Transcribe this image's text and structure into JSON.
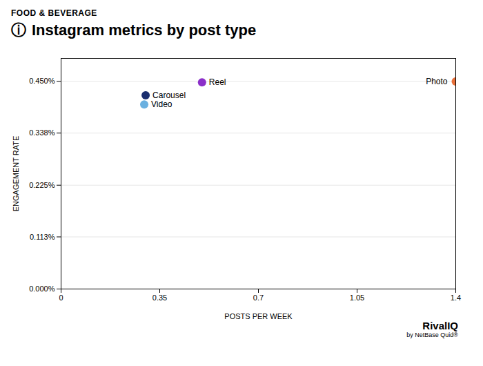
{
  "chart_data": {
    "type": "scatter",
    "subtitle": "FOOD & BEVERAGE",
    "title_icon": "ⓘ",
    "title": "Instagram metrics by post type",
    "xlabel": "POSTS PER WEEK",
    "ylabel": "ENGAGEMENT RATE",
    "labels": [
      "Photo",
      "Reel",
      "Carousel",
      "Video"
    ],
    "x": [
      1.4,
      0.5,
      0.3,
      0.295
    ],
    "values": [
      0.0045,
      0.00448,
      0.0042,
      0.004
    ],
    "colors": [
      "#e8703a",
      "#8b2fc9",
      "#1a2e6e",
      "#6ab0e0"
    ],
    "xlim": [
      0,
      1.4
    ],
    "ylim": [
      0,
      0.005
    ],
    "xticks": [
      0,
      0.35,
      0.7,
      1.05,
      1.4
    ],
    "yticks": [
      {
        "value": 0.0,
        "label": "0.000%"
      },
      {
        "value": 0.00113,
        "label": "0.113%"
      },
      {
        "value": 0.00225,
        "label": "0.225%"
      },
      {
        "value": 0.00338,
        "label": "0.338%"
      },
      {
        "value": 0.0045,
        "label": "0.450%"
      }
    ],
    "grid": "y",
    "branding": [
      "Rival",
      "IQ"
    ],
    "caption": "by NetBase Quid®"
  }
}
